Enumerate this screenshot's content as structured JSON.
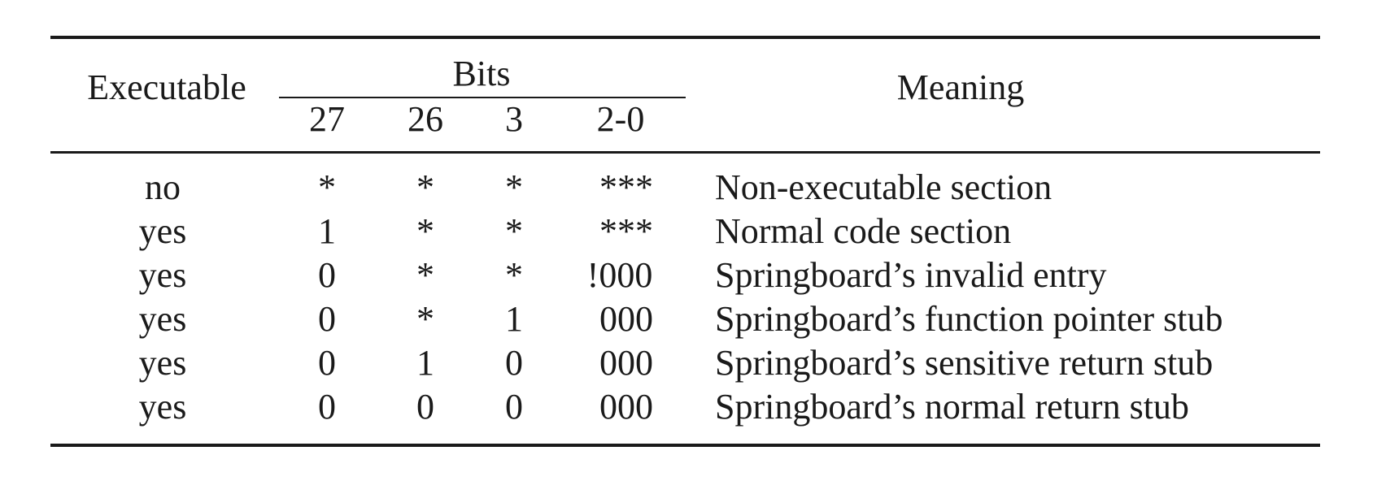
{
  "table": {
    "headers": {
      "executable": "Executable",
      "bits": "Bits",
      "bit_columns": [
        "27",
        "26",
        "3",
        "2-0"
      ],
      "meaning": "Meaning"
    },
    "rows": [
      {
        "executable": "no",
        "bits": [
          "*",
          "*",
          "*",
          "***"
        ],
        "meaning": "Non-executable section"
      },
      {
        "executable": "yes",
        "bits": [
          "1",
          "*",
          "*",
          "***"
        ],
        "meaning": "Normal code section"
      },
      {
        "executable": "yes",
        "bits": [
          "0",
          "*",
          "*",
          "!000"
        ],
        "meaning": "Springboard’s invalid entry"
      },
      {
        "executable": "yes",
        "bits": [
          "0",
          "*",
          "1",
          "000"
        ],
        "meaning": "Springboard’s function pointer stub"
      },
      {
        "executable": "yes",
        "bits": [
          "0",
          "1",
          "0",
          "000"
        ],
        "meaning": "Springboard’s sensitive return stub"
      },
      {
        "executable": "yes",
        "bits": [
          "0",
          "0",
          "0",
          "000"
        ],
        "meaning": "Springboard’s normal return stub"
      }
    ]
  }
}
